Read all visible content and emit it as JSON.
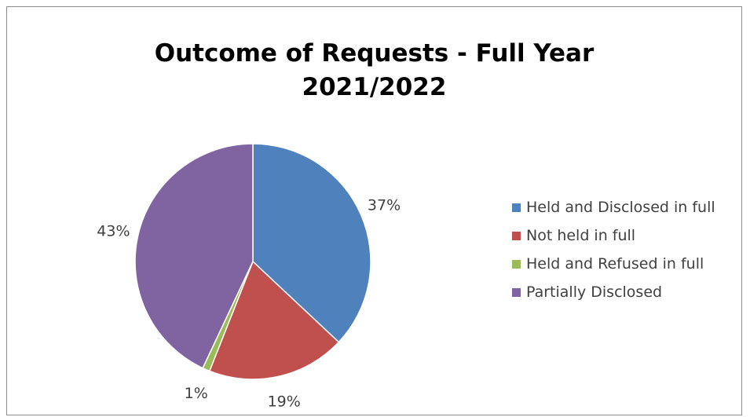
{
  "chart_data": {
    "type": "pie",
    "title": [
      "Outcome of Requests - Full Year",
      "2021/2022"
    ],
    "categories": [
      "Held and Disclosed in full",
      "Not held in full",
      "Held and Refused in full",
      "Partially Disclosed"
    ],
    "values": [
      37,
      19,
      1,
      43
    ],
    "labels": [
      "37%",
      "19%",
      "1%",
      "43%"
    ],
    "colors": [
      "#4f81bd",
      "#c0504d",
      "#9bbb59",
      "#8064a2"
    ],
    "legend": "right"
  }
}
